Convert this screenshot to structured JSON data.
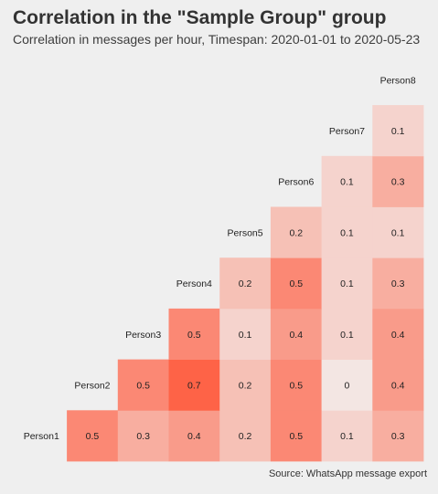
{
  "title": "Correlation in the \"Sample Group\" group",
  "subtitle": "Correlation in messages per hour, Timespan: 2020-01-01 to 2020-05-23",
  "caption": "Source: WhatsApp message export",
  "colors": {
    "background": "#efefef",
    "low": "#f3e6e3",
    "high": "#fe6347",
    "text": "#222222"
  },
  "chart_data": {
    "type": "heatmap",
    "layout": "lower-triangle",
    "persons": [
      "Person1",
      "Person2",
      "Person3",
      "Person4",
      "Person5",
      "Person6",
      "Person7",
      "Person8"
    ],
    "cells": [
      {
        "row": "Person1",
        "col": "Person2",
        "value": 0.5
      },
      {
        "row": "Person1",
        "col": "Person3",
        "value": 0.3
      },
      {
        "row": "Person1",
        "col": "Person4",
        "value": 0.4
      },
      {
        "row": "Person1",
        "col": "Person5",
        "value": 0.2
      },
      {
        "row": "Person1",
        "col": "Person6",
        "value": 0.5
      },
      {
        "row": "Person1",
        "col": "Person7",
        "value": 0.1
      },
      {
        "row": "Person1",
        "col": "Person8",
        "value": 0.3
      },
      {
        "row": "Person2",
        "col": "Person3",
        "value": 0.5
      },
      {
        "row": "Person2",
        "col": "Person4",
        "value": 0.7
      },
      {
        "row": "Person2",
        "col": "Person5",
        "value": 0.2
      },
      {
        "row": "Person2",
        "col": "Person6",
        "value": 0.5
      },
      {
        "row": "Person2",
        "col": "Person7",
        "value": 0
      },
      {
        "row": "Person2",
        "col": "Person8",
        "value": 0.4
      },
      {
        "row": "Person3",
        "col": "Person4",
        "value": 0.5
      },
      {
        "row": "Person3",
        "col": "Person5",
        "value": 0.1
      },
      {
        "row": "Person3",
        "col": "Person6",
        "value": 0.4
      },
      {
        "row": "Person3",
        "col": "Person7",
        "value": 0.1
      },
      {
        "row": "Person3",
        "col": "Person8",
        "value": 0.4
      },
      {
        "row": "Person4",
        "col": "Person5",
        "value": 0.2
      },
      {
        "row": "Person4",
        "col": "Person6",
        "value": 0.5
      },
      {
        "row": "Person4",
        "col": "Person7",
        "value": 0.1
      },
      {
        "row": "Person4",
        "col": "Person8",
        "value": 0.3
      },
      {
        "row": "Person5",
        "col": "Person6",
        "value": 0.2
      },
      {
        "row": "Person5",
        "col": "Person7",
        "value": 0.1
      },
      {
        "row": "Person5",
        "col": "Person8",
        "value": 0.1
      },
      {
        "row": "Person6",
        "col": "Person7",
        "value": 0.1
      },
      {
        "row": "Person6",
        "col": "Person8",
        "value": 0.3
      },
      {
        "row": "Person7",
        "col": "Person8",
        "value": 0.1
      }
    ],
    "grid": false,
    "legend": "none"
  }
}
